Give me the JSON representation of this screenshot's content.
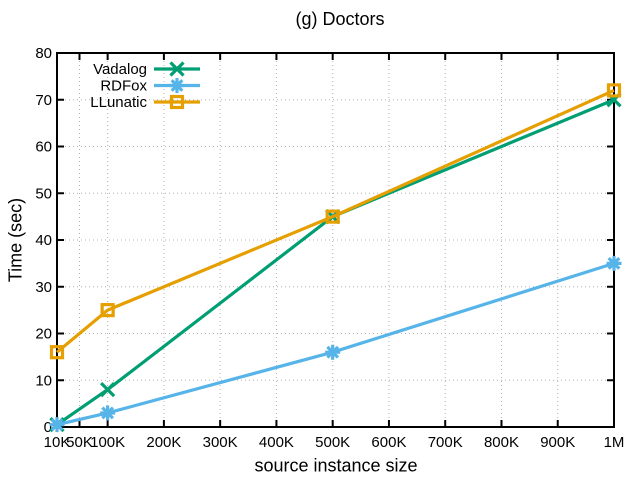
{
  "chart_data": {
    "type": "line",
    "title": "(g) Doctors",
    "xlabel": "source instance size",
    "ylabel": "Time (sec)",
    "xlim": [
      10000,
      1000000
    ],
    "ylim": [
      0,
      80
    ],
    "x_ticks": [
      {
        "label": "10K",
        "value": 10000
      },
      {
        "label": "50K",
        "value": 50000
      },
      {
        "label": "100K",
        "value": 100000
      },
      {
        "label": "200K",
        "value": 200000
      },
      {
        "label": "300K",
        "value": 300000
      },
      {
        "label": "400K",
        "value": 400000
      },
      {
        "label": "500K",
        "value": 500000
      },
      {
        "label": "600K",
        "value": 600000
      },
      {
        "label": "700K",
        "value": 700000
      },
      {
        "label": "800K",
        "value": 800000
      },
      {
        "label": "900K",
        "value": 900000
      },
      {
        "label": "1M",
        "value": 1000000
      }
    ],
    "y_ticks": [
      0,
      10,
      20,
      30,
      40,
      50,
      60,
      70,
      80
    ],
    "grid": "dotted",
    "grid_color": "#b3b3b3",
    "axis_color": "#000000",
    "legend_position": "top-left-inside",
    "series": [
      {
        "name": "Vadalog",
        "color": "#009e73",
        "marker": "cross",
        "x": [
          10000,
          100000,
          500000,
          1000000
        ],
        "y": [
          0.5,
          8,
          45,
          70
        ]
      },
      {
        "name": "RDFox",
        "color": "#56b4e9",
        "marker": "asterisk",
        "x": [
          10000,
          100000,
          500000,
          1000000
        ],
        "y": [
          0.5,
          3,
          16,
          35
        ]
      },
      {
        "name": "LLunatic",
        "color": "#e69f00",
        "marker": "open-square",
        "x": [
          10000,
          100000,
          500000,
          1000000
        ],
        "y": [
          16,
          25,
          45,
          72
        ]
      }
    ]
  }
}
